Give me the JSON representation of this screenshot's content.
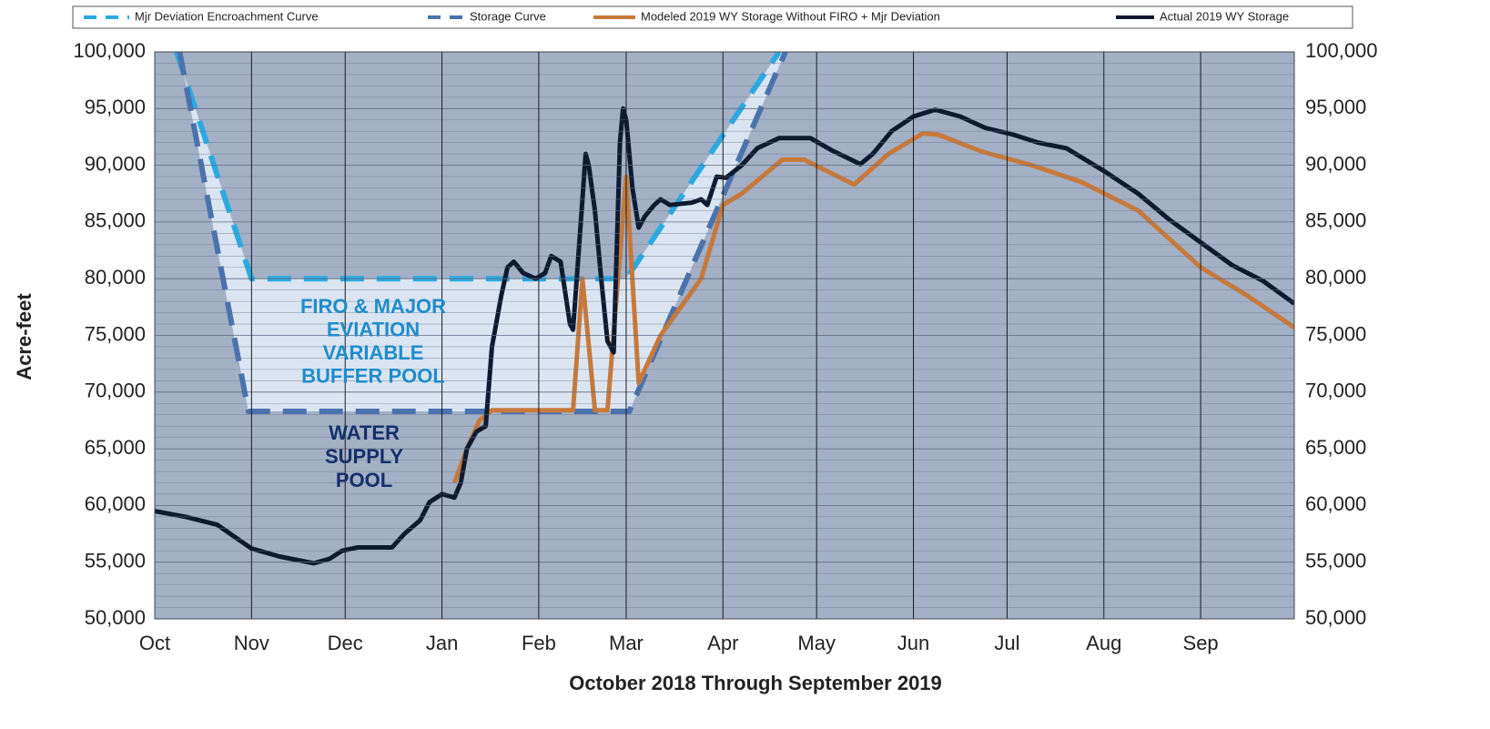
{
  "chart_data": {
    "type": "line",
    "x_label": "October 2018 Through September 2019",
    "y_label": "Acre-feet",
    "xlim": [
      0,
      365
    ],
    "xticks": [
      {
        "value": 0,
        "label": "Oct"
      },
      {
        "value": 31,
        "label": "Nov"
      },
      {
        "value": 61,
        "label": "Dec"
      },
      {
        "value": 92,
        "label": "Jan"
      },
      {
        "value": 123,
        "label": "Feb"
      },
      {
        "value": 151,
        "label": "Mar"
      },
      {
        "value": 182,
        "label": "Apr"
      },
      {
        "value": 212,
        "label": "May"
      },
      {
        "value": 243,
        "label": "Jun"
      },
      {
        "value": 273,
        "label": "Jul"
      },
      {
        "value": 304,
        "label": "Aug"
      },
      {
        "value": 335,
        "label": "Sep"
      }
    ],
    "ylim": [
      50000,
      100000
    ],
    "yticks": [
      {
        "value": 50000,
        "label": "50,000"
      },
      {
        "value": 55000,
        "label": "55,000"
      },
      {
        "value": 60000,
        "label": "60,000"
      },
      {
        "value": 65000,
        "label": "65,000"
      },
      {
        "value": 70000,
        "label": "70,000"
      },
      {
        "value": 75000,
        "label": "75,000"
      },
      {
        "value": 80000,
        "label": "80,000"
      },
      {
        "value": 85000,
        "label": "85,000"
      },
      {
        "value": 90000,
        "label": "90,000"
      },
      {
        "value": 95000,
        "label": "95,000"
      },
      {
        "value": 100000,
        "label": "100,000"
      }
    ],
    "y2lim": [
      50000,
      100000
    ],
    "y2ticks": [
      {
        "value": 50000,
        "label": "50,000"
      },
      {
        "value": 55000,
        "label": "55,000"
      },
      {
        "value": 60000,
        "label": "60,000"
      },
      {
        "value": 65000,
        "label": "65,000"
      },
      {
        "value": 70000,
        "label": "70,000"
      },
      {
        "value": 75000,
        "label": "75,000"
      },
      {
        "value": 80000,
        "label": "80,000"
      },
      {
        "value": 85000,
        "label": "85,000"
      },
      {
        "value": 90000,
        "label": "90,000"
      },
      {
        "value": 95000,
        "label": "95,000"
      },
      {
        "value": 100000,
        "label": "100,000"
      }
    ],
    "grid": true,
    "legend": "top",
    "annotations": [
      {
        "lines": [
          "FIRO & MAJOR",
          "EVIATION",
          "VARIABLE",
          "BUFFER POOL"
        ],
        "color": "#1f8ccc"
      },
      {
        "lines": [
          "WATER",
          "SUPPLY",
          "POOL"
        ],
        "color": "#14306b"
      }
    ],
    "series": [
      {
        "name": "Mjr Deviation Encroachment Curve",
        "color": "#2aaae2",
        "style": "dashed",
        "x": [
          7,
          31,
          151,
          200
        ],
        "values": [
          100000,
          80000,
          80000,
          100000
        ]
      },
      {
        "name": "Storage Curve",
        "color": "#4a72ad",
        "style": "dashed",
        "x": [
          8,
          30,
          152,
          202
        ],
        "values": [
          100000,
          68300,
          68300,
          100000
        ]
      },
      {
        "name": "Modeled 2019 WY Storage Without FIRO + Mjr Deviation",
        "color": "#c8793a",
        "style": "solid",
        "x": [
          96,
          100,
          104,
          108,
          134,
          137,
          141,
          145,
          151,
          155,
          162,
          175,
          182,
          188,
          201,
          208,
          224,
          235,
          246,
          251,
          265,
          281,
          297,
          315,
          335,
          350,
          365
        ],
        "values": [
          62000,
          65000,
          67500,
          68400,
          68400,
          80000,
          68400,
          68400,
          89000,
          70800,
          75000,
          80000,
          86500,
          87500,
          90500,
          90500,
          88300,
          91000,
          92800,
          92700,
          91200,
          90000,
          88500,
          86000,
          81000,
          78500,
          75700
        ]
      },
      {
        "name": "Actual 2019 WY Storage",
        "color": "#0e1a30",
        "style": "solid",
        "x": [
          0,
          10,
          20,
          31,
          40,
          51,
          56,
          60,
          65,
          76,
          80,
          85,
          88,
          92,
          96,
          98,
          100,
          103,
          106,
          108,
          111,
          113,
          115,
          118,
          122,
          125,
          127,
          130,
          133,
          134,
          137,
          138,
          139,
          141,
          143,
          145,
          147,
          149,
          150,
          151,
          153,
          155,
          157,
          160,
          162,
          165,
          172,
          175,
          177,
          180,
          183,
          188,
          193,
          200,
          210,
          217,
          226,
          230,
          236,
          243,
          250,
          258,
          266,
          275,
          283,
          292,
          304,
          315,
          325,
          335,
          345,
          355,
          365
        ],
        "values": [
          59500,
          59000,
          58300,
          56200,
          55500,
          54900,
          55300,
          56000,
          56300,
          56300,
          57500,
          58700,
          60300,
          61000,
          60700,
          62000,
          65000,
          66500,
          67000,
          74000,
          78500,
          81000,
          81500,
          80500,
          80000,
          80500,
          82000,
          81500,
          76000,
          75500,
          87000,
          91000,
          90000,
          86000,
          80000,
          74500,
          73500,
          92000,
          95000,
          94000,
          88000,
          84500,
          85500,
          86500,
          87000,
          86500,
          86700,
          87000,
          86500,
          89000,
          88900,
          90000,
          91500,
          92400,
          92400,
          91300,
          90100,
          91000,
          93000,
          94300,
          94900,
          94300,
          93300,
          92700,
          92000,
          91500,
          89500,
          87500,
          85200,
          83200,
          81200,
          79800,
          77800
        ]
      }
    ]
  }
}
